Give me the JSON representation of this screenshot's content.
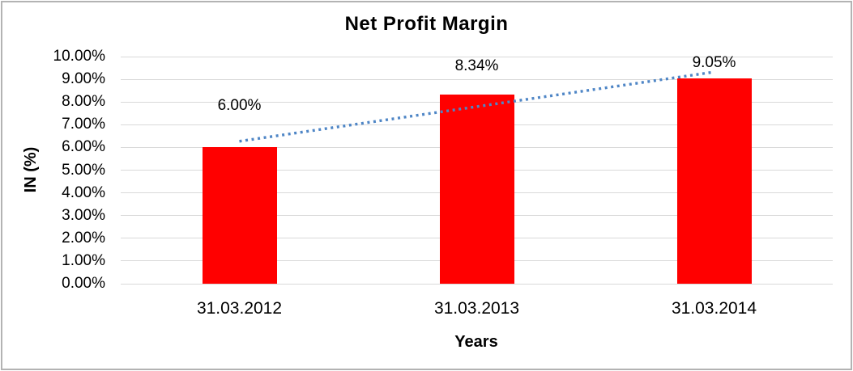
{
  "chart_data": {
    "type": "bar",
    "title": "Net Profit Margin",
    "categories": [
      "31.03.2012",
      "31.03.2013",
      "31.03.2014"
    ],
    "values": [
      6.0,
      8.34,
      9.05
    ],
    "data_labels": [
      "6.00%",
      "8.34%",
      "9.05%"
    ],
    "xlabel": "Years",
    "ylabel": "IN (%)",
    "ylim": [
      0,
      10
    ],
    "ytick_labels": [
      "0.00%",
      "1.00%",
      "2.00%",
      "3.00%",
      "4.00%",
      "5.00%",
      "6.00%",
      "7.00%",
      "8.00%",
      "9.00%",
      "10.00%"
    ],
    "grid": true,
    "legend": "none",
    "trendline": {
      "type": "linear",
      "style": "dotted",
      "span": "first-to-last-category"
    },
    "colors": {
      "bar": "#ff0000",
      "trendline": "#4f86c6",
      "gridline": "#d9d9d9",
      "text": "#000000",
      "frame_border": "#b3b3b3",
      "background": "#ffffff"
    }
  }
}
